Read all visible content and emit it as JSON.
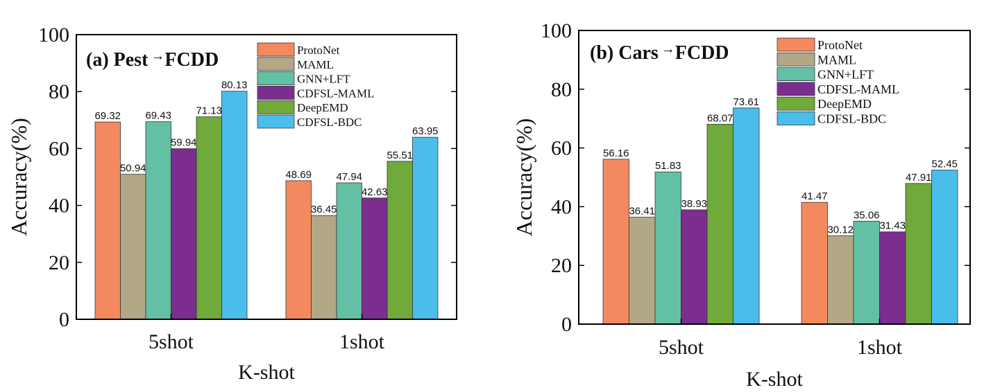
{
  "chart_data": [
    {
      "type": "bar",
      "title": "(a) Pest→FCDD",
      "title_parts": [
        "(a) Pest",
        "→",
        "FCDD"
      ],
      "xlabel": "K-shot",
      "ylabel": "Accuracy(%)",
      "ylim": [
        0,
        100
      ],
      "yticks": [
        "0",
        "20",
        "40",
        "60",
        "80",
        "100"
      ],
      "categories": [
        "5shot",
        "1shot"
      ],
      "legend_position": "top-right",
      "series": [
        {
          "name": "ProtoNet",
          "color": "#F4895F",
          "values": [
            69.32,
            48.69
          ],
          "labels": [
            "69.32",
            "48.69"
          ]
        },
        {
          "name": "MAML",
          "color": "#B2A886",
          "values": [
            50.94,
            36.45
          ],
          "labels": [
            "50.94",
            "36.45"
          ]
        },
        {
          "name": "GNN+LFT",
          "color": "#63C0A5",
          "values": [
            69.43,
            47.94
          ],
          "labels": [
            "69.43",
            "47.94"
          ]
        },
        {
          "name": "CDFSL-MAML",
          "color": "#7B2E8E",
          "values": [
            59.94,
            42.63
          ],
          "labels": [
            "59.94",
            "42.63"
          ]
        },
        {
          "name": "DeepEMD",
          "color": "#6FAA3B",
          "values": [
            71.13,
            55.51
          ],
          "labels": [
            "71.13",
            "55.51"
          ]
        },
        {
          "name": "CDFSL-BDC",
          "color": "#4BBDEA",
          "values": [
            80.13,
            63.95
          ],
          "labels": [
            "80.13",
            "63.95"
          ]
        }
      ]
    },
    {
      "type": "bar",
      "title": "(b) Cars→FCDD",
      "title_parts": [
        "(b) Cars",
        "→",
        "FCDD"
      ],
      "xlabel": "K-shot",
      "ylabel": "Accuracy(%)",
      "ylim": [
        0,
        100
      ],
      "yticks": [
        "0",
        "20",
        "40",
        "60",
        "80",
        "100"
      ],
      "categories": [
        "5shot",
        "1shot"
      ],
      "legend_position": "top-right",
      "series": [
        {
          "name": "ProtoNet",
          "color": "#F4895F",
          "values": [
            56.16,
            41.47
          ],
          "labels": [
            "56.16",
            "41.47"
          ]
        },
        {
          "name": "MAML",
          "color": "#B2A886",
          "values": [
            36.41,
            30.12
          ],
          "labels": [
            "36.41",
            "30.12"
          ]
        },
        {
          "name": "GNN+LFT",
          "color": "#63C0A5",
          "values": [
            51.83,
            35.06
          ],
          "labels": [
            "51.83",
            "35.06"
          ]
        },
        {
          "name": "CDFSL-MAML",
          "color": "#7B2E8E",
          "values": [
            38.93,
            31.43
          ],
          "labels": [
            "38.93",
            "31.43"
          ]
        },
        {
          "name": "DeepEMD",
          "color": "#6FAA3B",
          "values": [
            68.07,
            47.91
          ],
          "labels": [
            "68.07",
            "47.91"
          ]
        },
        {
          "name": "CDFSL-BDC",
          "color": "#4BBDEA",
          "values": [
            73.61,
            52.45
          ],
          "labels": [
            "73.61",
            "52.45"
          ]
        }
      ]
    }
  ]
}
